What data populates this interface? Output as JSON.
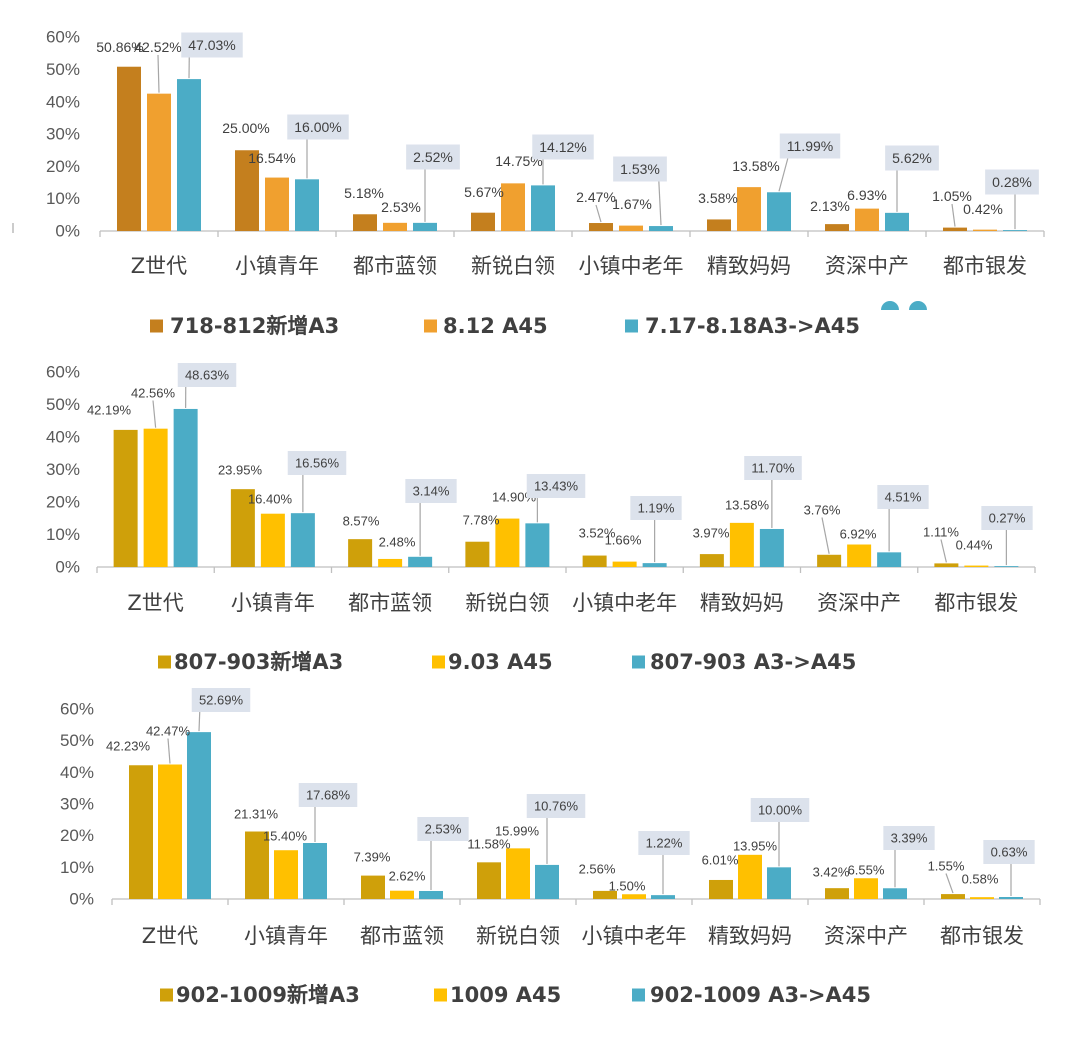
{
  "chart_data": [
    {
      "type": "bar",
      "title": "",
      "xlabel": "",
      "ylabel": "",
      "ylim": [
        0,
        60
      ],
      "ytick_labels": [
        "0%",
        "10%",
        "20%",
        "30%",
        "40%",
        "50%",
        "60%"
      ],
      "categories": [
        "Z世代",
        "小镇青年",
        "都市蓝领",
        "新锐白领",
        "小镇中老年",
        "精致妈妈",
        "资深中产",
        "都市银发"
      ],
      "series": [
        {
          "name": "718-812新增A3",
          "color": "#C47F1E",
          "values": [
            50.86,
            25.0,
            5.18,
            5.67,
            2.47,
            3.58,
            2.13,
            1.05
          ],
          "value_labels": [
            "50.86%",
            "25.00%",
            "5.18%",
            "5.67%",
            "2.47%",
            "3.58%",
            "2.13%",
            "1.05%"
          ]
        },
        {
          "name": "8.12 A45",
          "color": "#F0A02F",
          "values": [
            42.52,
            16.54,
            2.53,
            14.75,
            1.67,
            13.58,
            6.93,
            0.42
          ],
          "value_labels": [
            "42.52%",
            "16.54%",
            "2.53%",
            "14.75%",
            "1.67%",
            "13.58%",
            "6.93%",
            "0.42%"
          ]
        },
        {
          "name": "7.17-8.18A3->A45",
          "color": "#4BACC6",
          "values": [
            47.03,
            16.0,
            2.52,
            14.12,
            1.53,
            11.99,
            5.62,
            0.28
          ],
          "value_labels": [
            "47.03%",
            "16.00%",
            "2.52%",
            "14.12%",
            "1.53%",
            "11.99%",
            "5.62%",
            "0.28%"
          ]
        }
      ]
    },
    {
      "type": "bar",
      "title": "",
      "xlabel": "",
      "ylabel": "",
      "ylim": [
        0,
        60
      ],
      "ytick_labels": [
        "0%",
        "10%",
        "20%",
        "30%",
        "40%",
        "50%",
        "60%"
      ],
      "categories": [
        "Z世代",
        "小镇青年",
        "都市蓝领",
        "新锐白领",
        "小镇中老年",
        "精致妈妈",
        "资深中产",
        "都市银发"
      ],
      "series": [
        {
          "name": "807-903新增A3",
          "color": "#CFA00A",
          "values": [
            42.19,
            23.95,
            8.57,
            7.78,
            3.52,
            3.97,
            3.76,
            1.11
          ],
          "value_labels": [
            "42.19%",
            "23.95%",
            "8.57%",
            "7.78%",
            "3.52%",
            "3.97%",
            "3.76%",
            "1.11%"
          ]
        },
        {
          "name": "9.03 A45",
          "color": "#FFC000",
          "values": [
            42.56,
            16.4,
            2.48,
            14.9,
            1.66,
            13.58,
            6.92,
            0.44
          ],
          "value_labels": [
            "42.56%",
            "16.40%",
            "2.48%",
            "14.90%",
            "1.66%",
            "13.58%",
            "6.92%",
            "0.44%"
          ]
        },
        {
          "name": "807-903 A3->A45",
          "color": "#4BACC6",
          "values": [
            48.63,
            16.56,
            3.14,
            13.43,
            1.19,
            11.7,
            4.51,
            0.27
          ],
          "value_labels": [
            "48.63%",
            "16.56%",
            "3.14%",
            "13.43%",
            "1.19%",
            "11.70%",
            "4.51%",
            "0.27%"
          ]
        }
      ]
    },
    {
      "type": "bar",
      "title": "",
      "xlabel": "",
      "ylabel": "",
      "ylim": [
        0,
        60
      ],
      "ytick_labels": [
        "0%",
        "10%",
        "20%",
        "30%",
        "40%",
        "50%",
        "60%"
      ],
      "categories": [
        "Z世代",
        "小镇青年",
        "都市蓝领",
        "新锐白领",
        "小镇中老年",
        "精致妈妈",
        "资深中产",
        "都市银发"
      ],
      "series": [
        {
          "name": "902-1009新增A3",
          "color": "#CFA00A",
          "values": [
            42.23,
            21.31,
            7.39,
            11.58,
            2.56,
            6.01,
            3.42,
            1.55
          ],
          "value_labels": [
            "42.23%",
            "21.31%",
            "7.39%",
            "11.58%",
            "2.56%",
            "6.01%",
            "3.42%",
            "1.55%"
          ]
        },
        {
          "name": "1009 A45",
          "color": "#FFC000",
          "values": [
            42.47,
            15.4,
            2.62,
            15.99,
            1.5,
            13.95,
            6.55,
            0.58
          ],
          "value_labels": [
            "42.47%",
            "15.40%",
            "2.62%",
            "15.99%",
            "1.50%",
            "13.95%",
            "6.55%",
            "0.58%"
          ]
        },
        {
          "name": "902-1009 A3->A45",
          "color": "#4BACC6",
          "values": [
            52.69,
            17.68,
            2.53,
            10.76,
            1.22,
            10.0,
            3.39,
            0.63
          ],
          "value_labels": [
            "52.69%",
            "17.68%",
            "2.53%",
            "10.76%",
            "1.22%",
            "10.00%",
            "3.39%",
            "0.63%"
          ]
        }
      ]
    }
  ]
}
